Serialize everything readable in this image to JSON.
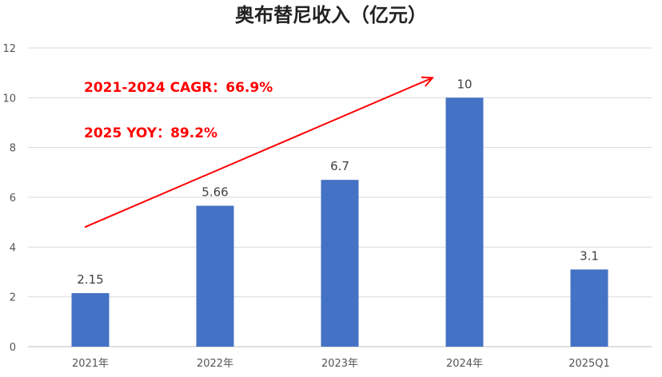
{
  "chart_data": {
    "type": "bar",
    "title": "奥布替尼收入（亿元）",
    "categories": [
      "2021年",
      "2022年",
      "2023年",
      "2024年",
      "2025Q1"
    ],
    "values": [
      2.15,
      5.66,
      6.7,
      10,
      3.1
    ],
    "value_labels": [
      "2.15",
      "5.66",
      "6.7",
      "10",
      "3.1"
    ],
    "ylim": [
      0,
      12
    ],
    "yticks": [
      0,
      2,
      4,
      6,
      8,
      10,
      12
    ],
    "grid": true,
    "legend": "none",
    "bar_color": "#4472C4",
    "annotations": [
      {
        "text": "2021-2024 CAGR：66.9%",
        "color": "#FF0000"
      },
      {
        "text": "2025 YOY：89.2%",
        "color": "#FF0000"
      }
    ],
    "trend_arrow": {
      "from_category": "2021年",
      "to_category": "2024年",
      "color": "#FF0000"
    }
  }
}
